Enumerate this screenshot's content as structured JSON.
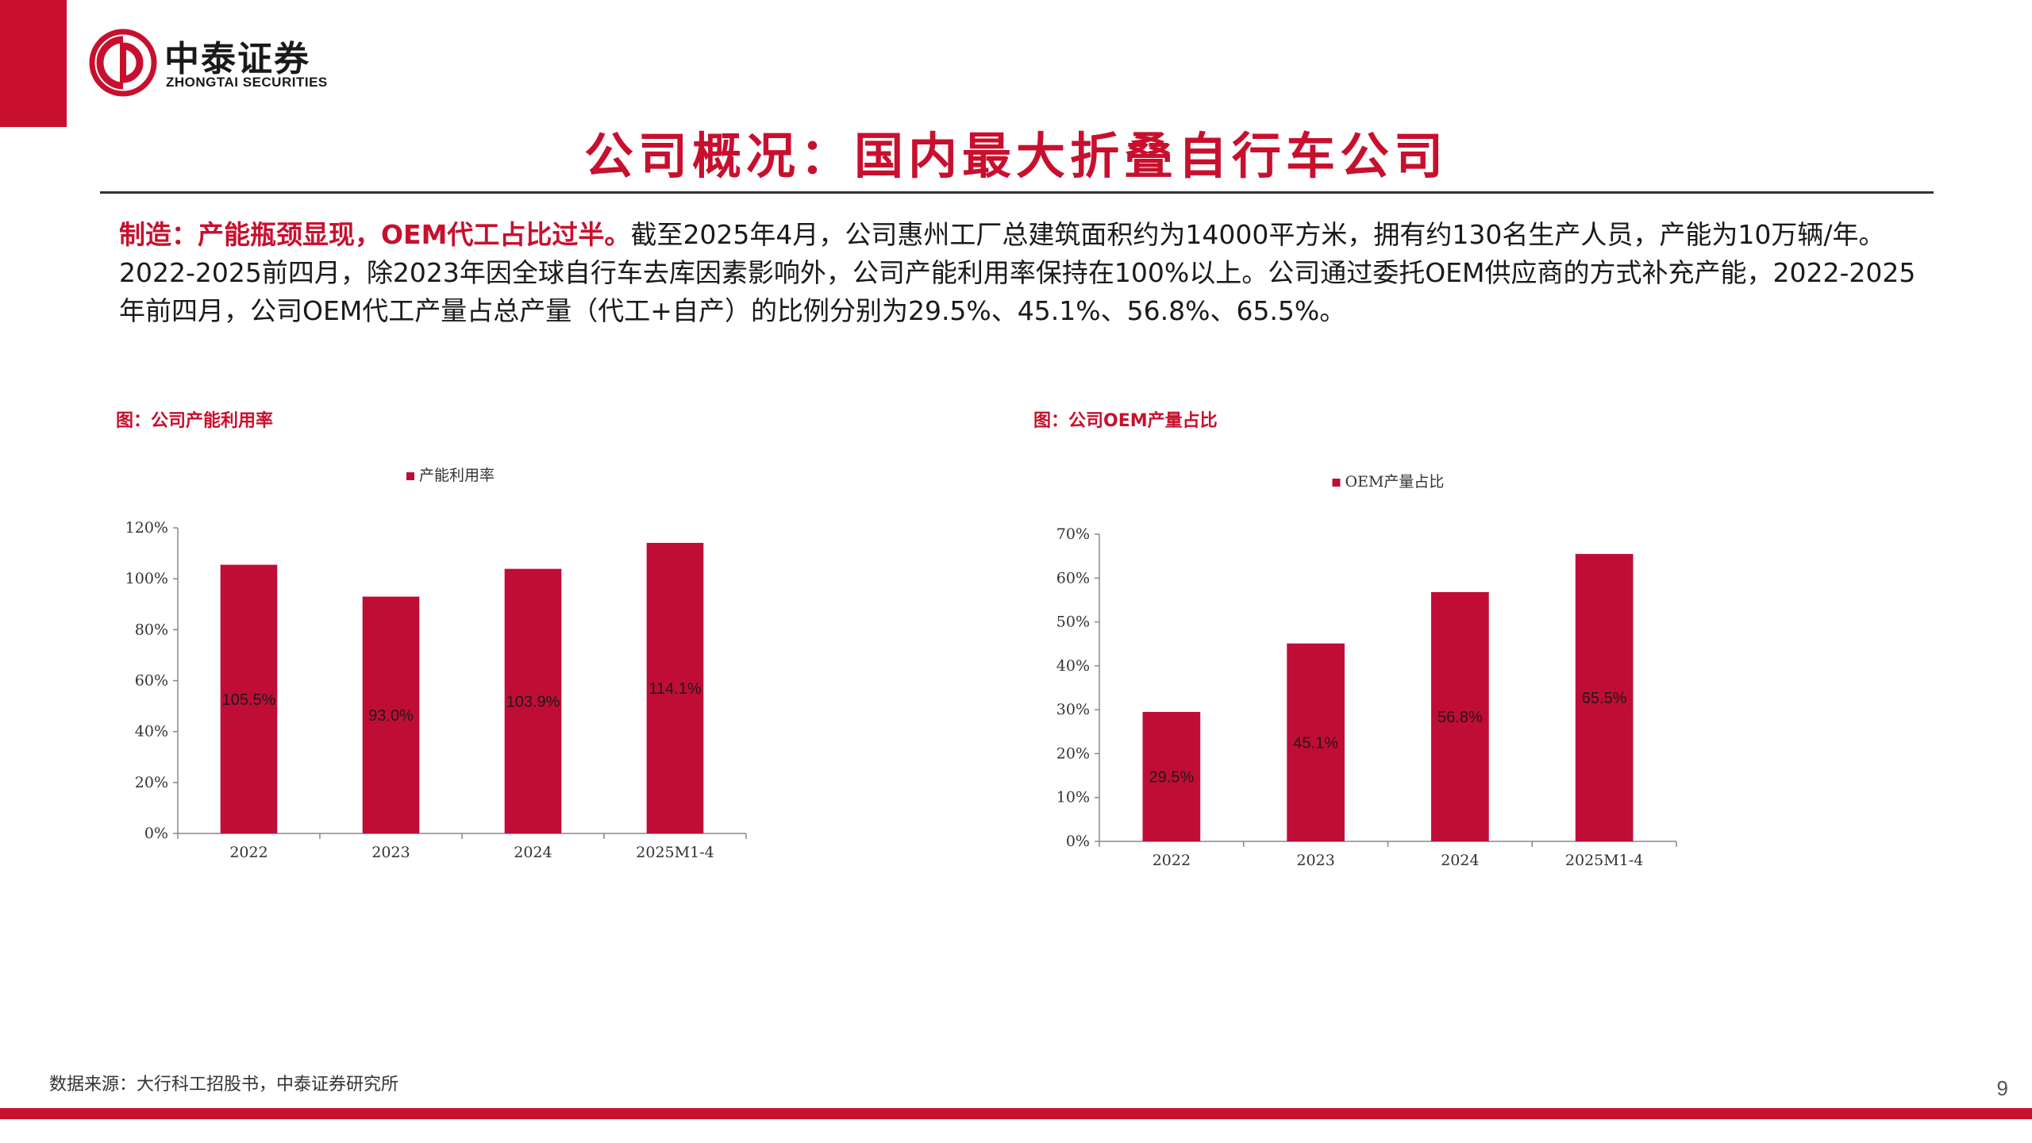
{
  "header": {
    "logo_cn": "中泰证券",
    "logo_en": "ZHONGTAI SECURITIES",
    "page_title": "公司概况：国内最大折叠自行车公司"
  },
  "summary": {
    "highlight": "制造：产能瓶颈显现，OEM代工占比过半。",
    "body": "截至2025年4月，公司惠州工厂总建筑面积约为14000平方米，拥有约130名生产人员，产能为10万辆/年。2022-2025前四月，除2023年因全球自行车去库因素影响外，公司产能利用率保持在100%以上。公司通过委托OEM供应商的方式补充产能，2022-2025年前四月，公司OEM代工产量占总产量（代工+自产）的比例分别为29.5%、45.1%、56.8%、65.5%。"
  },
  "footer": {
    "source": "数据来源：大行科工招股书，中泰证券研究所",
    "page_number": "9"
  },
  "colors": {
    "brand_red": "#c8102e",
    "bar_red": "#c00d36"
  },
  "chart_data": [
    {
      "type": "bar",
      "fig_title": "图：公司产能利用率",
      "legend_position": "top",
      "series": [
        {
          "name": "产能利用率",
          "values": [
            105.5,
            93.0,
            103.9,
            114.1
          ]
        }
      ],
      "categories": [
        "2022",
        "2023",
        "2024",
        "2025M1-4"
      ],
      "data_labels": [
        "105.5%",
        "93.0%",
        "103.9%",
        "114.1%"
      ],
      "ylim": [
        0,
        120
      ],
      "yticks": [
        "0%",
        "20%",
        "40%",
        "60%",
        "80%",
        "100%",
        "120%"
      ],
      "ytick_values": [
        0,
        20,
        40,
        60,
        80,
        100,
        120
      ],
      "grid": false
    },
    {
      "type": "bar",
      "fig_title": "图：公司OEM产量占比",
      "legend_position": "top",
      "series": [
        {
          "name": "OEM产量占比",
          "values": [
            29.5,
            45.1,
            56.8,
            65.5
          ]
        }
      ],
      "categories": [
        "2022",
        "2023",
        "2024",
        "2025M1-4"
      ],
      "data_labels": [
        "29.5%",
        "45.1%",
        "56.8%",
        "65.5%"
      ],
      "ylim": [
        0,
        70
      ],
      "yticks": [
        "0%",
        "10%",
        "20%",
        "30%",
        "40%",
        "50%",
        "60%",
        "70%"
      ],
      "ytick_values": [
        0,
        10,
        20,
        30,
        40,
        50,
        60,
        70
      ],
      "grid": false
    }
  ]
}
